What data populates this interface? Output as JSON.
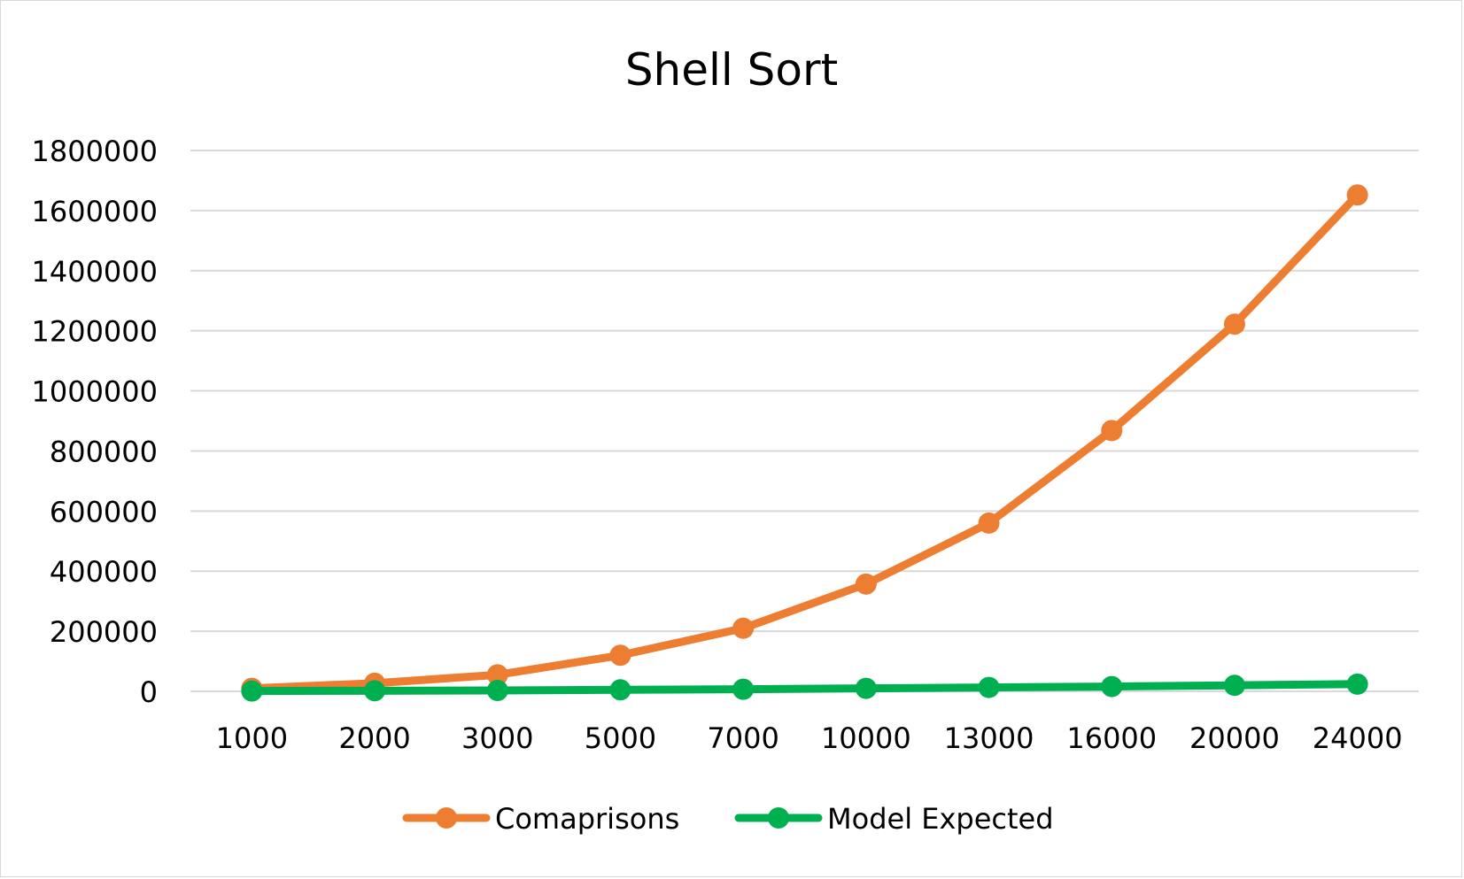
{
  "chart_data": {
    "type": "line",
    "title": "Shell Sort",
    "xlabel": "",
    "ylabel": "",
    "categories": [
      "1000",
      "2000",
      "3000",
      "5000",
      "7000",
      "10000",
      "13000",
      "16000",
      "20000",
      "24000"
    ],
    "ylim": [
      0,
      1800000
    ],
    "yticks": [
      "0",
      "200000",
      "400000",
      "600000",
      "800000",
      "1000000",
      "1200000",
      "1400000",
      "1600000",
      "1800000"
    ],
    "grid": true,
    "legend_position": "bottom",
    "series": [
      {
        "name": "Comaprisons",
        "color": "#ED7D31",
        "values": [
          10000,
          27000,
          55000,
          120000,
          210000,
          357000,
          560000,
          868000,
          1222000,
          1652000
        ]
      },
      {
        "name": "Model Expected",
        "color": "#00B050",
        "values": [
          1000,
          2000,
          3000,
          5000,
          7000,
          10000,
          13000,
          16000,
          20000,
          24000
        ]
      }
    ]
  }
}
